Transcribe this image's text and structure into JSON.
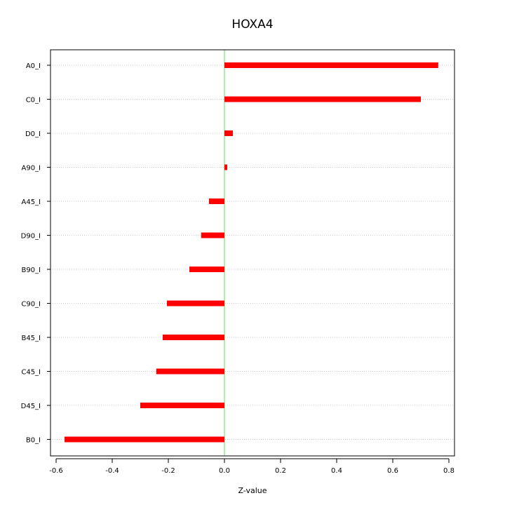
{
  "chart_data": {
    "type": "bar",
    "orientation": "horizontal",
    "title": "HOXA4",
    "xlabel": "Z-value",
    "ylabel": "",
    "xlim": [
      -0.62,
      0.82
    ],
    "xticks": [
      -0.6,
      -0.4,
      -0.2,
      0.0,
      0.2,
      0.4,
      0.6,
      0.8
    ],
    "xtick_labels": [
      "-0.6",
      "-0.4",
      "-0.2",
      "0.0",
      "0.2",
      "0.4",
      "0.6",
      "0.8"
    ],
    "categories": [
      "A0_I",
      "C0_I",
      "D0_I",
      "A90_I",
      "A45_I",
      "D90_I",
      "B90_I",
      "C90_I",
      "B45_I",
      "C45_I",
      "D45_I",
      "B0_I"
    ],
    "values": [
      0.762,
      0.7,
      0.03,
      0.01,
      -0.055,
      -0.083,
      -0.125,
      -0.205,
      -0.22,
      -0.243,
      -0.3,
      -0.57
    ],
    "bar_color": "#ff0000",
    "zero_line_color": "#90ee90",
    "grid": "horizontal dotted"
  }
}
